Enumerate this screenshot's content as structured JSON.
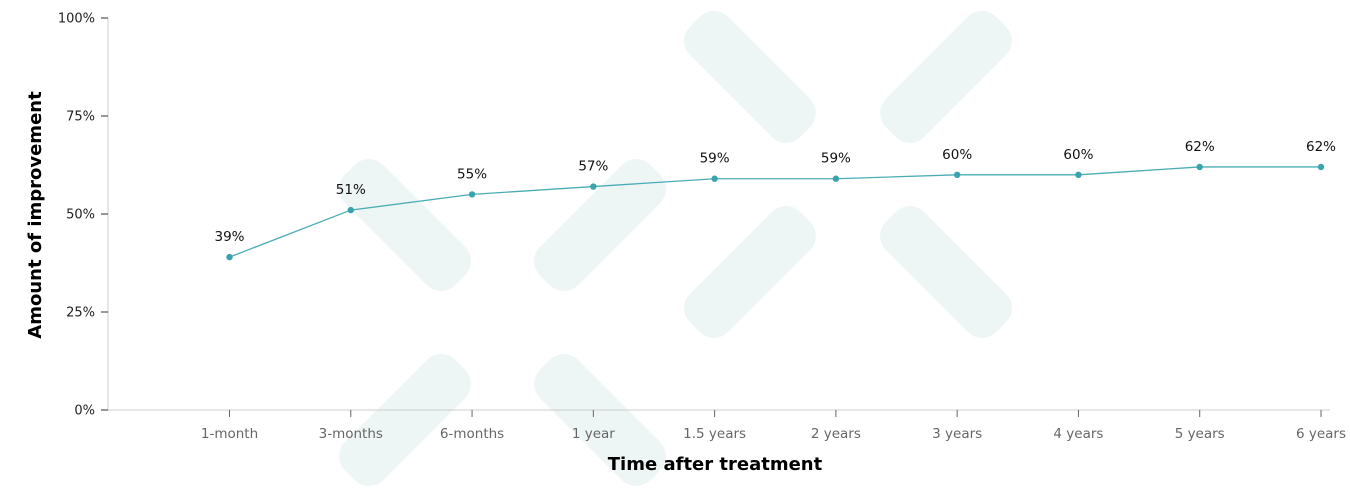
{
  "chart_data": {
    "type": "line",
    "title": "",
    "xlabel": "Time after treatment",
    "ylabel": "Amount of improvement",
    "categories": [
      "1-month",
      "3-months",
      "6-months",
      "1 year",
      "1.5 years",
      "2 years",
      "3 years",
      "4 years",
      "5 years",
      "6 years"
    ],
    "values": [
      39,
      51,
      55,
      57,
      59,
      59,
      60,
      60,
      62,
      62
    ],
    "data_labels": [
      "39%",
      "51%",
      "55%",
      "57%",
      "59%",
      "59%",
      "60%",
      "60%",
      "62%",
      "62%"
    ],
    "ylim": [
      0,
      100
    ],
    "yticks": [
      0,
      25,
      50,
      75,
      100
    ],
    "ytick_labels": [
      "0%",
      "25%",
      "50%",
      "75%",
      "100%"
    ],
    "grid": false,
    "legend": "none",
    "colors": {
      "line": "#4aadb5",
      "marker": "#3aa3ad",
      "watermark": "#eef6f5",
      "axis": "#cccccc"
    }
  }
}
